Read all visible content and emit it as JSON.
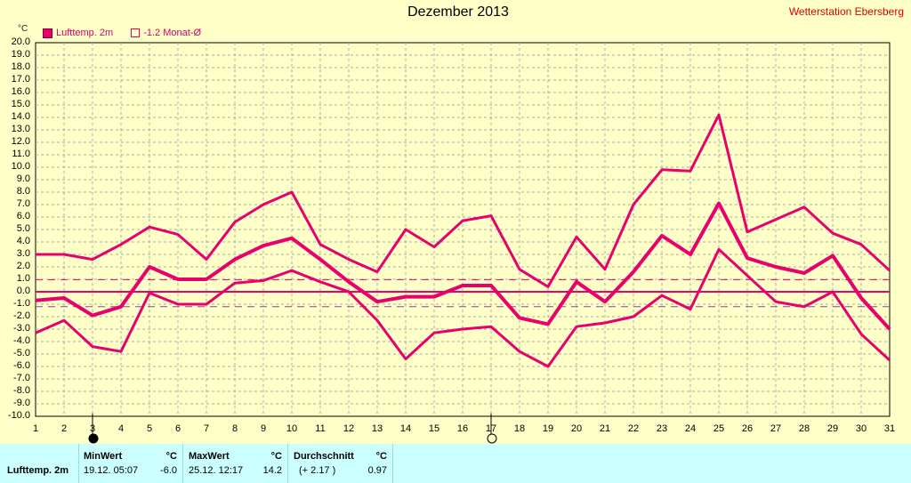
{
  "title": "Dezember 2013",
  "station": "Wetterstation Ebersberg",
  "legend": {
    "series_label": "Lufttemp. 2m",
    "avg_label": "-1.2 Monat-Ø"
  },
  "unit": "°C",
  "colors": {
    "series": "#e8006c",
    "grid": "#a8a8a8",
    "background": "#ffffc8",
    "stats_bg": "#ccffff"
  },
  "chart_data": {
    "type": "line",
    "title": "Dezember 2013",
    "ylabel": "°C",
    "ylim": [
      -10,
      20
    ],
    "ytick_step": 1,
    "x": [
      1,
      2,
      3,
      4,
      5,
      6,
      7,
      8,
      9,
      10,
      11,
      12,
      13,
      14,
      15,
      16,
      17,
      18,
      19,
      20,
      21,
      22,
      23,
      24,
      25,
      26,
      27,
      28,
      29,
      30,
      31
    ],
    "xlim": [
      1,
      31
    ],
    "grid": true,
    "legend_position": "top-left",
    "series": [
      {
        "name": "Max",
        "values": [
          3.0,
          3.0,
          2.6,
          3.8,
          5.2,
          4.6,
          2.6,
          5.6,
          7.0,
          8.0,
          3.8,
          2.6,
          1.6,
          5.0,
          3.6,
          5.7,
          6.1,
          1.8,
          0.4,
          4.4,
          1.8,
          7.0,
          9.8,
          9.7,
          14.2,
          4.8,
          5.8,
          6.8,
          4.7,
          3.8,
          1.7
        ]
      },
      {
        "name": "Lufttemp. 2m",
        "values": [
          -0.7,
          -0.5,
          -1.9,
          -1.2,
          2.0,
          1.0,
          1.0,
          2.6,
          3.7,
          4.3,
          2.6,
          0.8,
          -0.8,
          -0.4,
          -0.4,
          0.5,
          0.5,
          -2.1,
          -2.6,
          0.8,
          -0.8,
          1.6,
          4.5,
          3.0,
          7.1,
          2.7,
          2.0,
          1.5,
          2.9,
          -0.5,
          -3.0
        ]
      },
      {
        "name": "Min",
        "values": [
          -3.3,
          -2.3,
          -4.4,
          -4.8,
          -0.1,
          -1.0,
          -1.0,
          0.7,
          0.9,
          1.7,
          0.8,
          0.0,
          -2.3,
          -5.4,
          -3.3,
          -3.0,
          -2.8,
          -4.8,
          -6.0,
          -2.8,
          -2.5,
          -2.0,
          -0.3,
          -1.4,
          3.4,
          1.3,
          -0.8,
          -1.2,
          0.0,
          -3.4,
          -5.5
        ]
      }
    ],
    "reference_lines": [
      {
        "value": 0,
        "style": "solid"
      },
      {
        "value": 0.97,
        "style": "dashed"
      },
      {
        "value": -1.2,
        "style": "dashed"
      }
    ],
    "markers": [
      {
        "x": 3,
        "symbol": "full-moon-filled"
      },
      {
        "x": 17,
        "symbol": "moon-outline"
      }
    ]
  },
  "stats": {
    "row_label": "Lufttemp. 2m",
    "min": {
      "header": "MinWert",
      "unit": "°C",
      "time": "19.12.  05:07",
      "value": "-6.0"
    },
    "max": {
      "header": "MaxWert",
      "unit": "°C",
      "time": "25.12.  12:17",
      "value": "14.2"
    },
    "avg": {
      "header": "Durchschnitt",
      "unit": "°C",
      "delta": "(+ 2.17 )",
      "value": "0.97"
    }
  }
}
